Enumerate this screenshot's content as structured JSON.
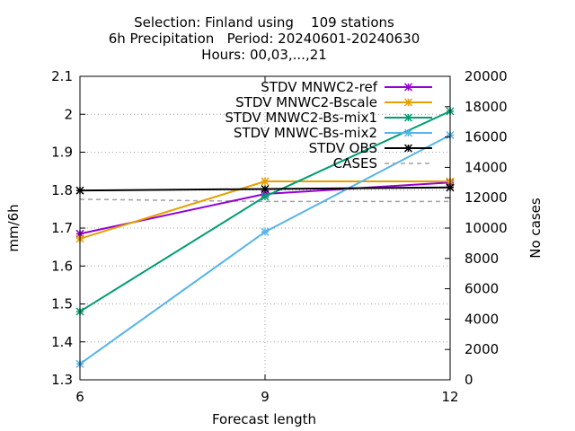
{
  "chart_data": {
    "type": "line",
    "title_lines": [
      "Selection: Finland using    109 stations",
      "6h Precipitation   Period: 20240601-20240630",
      "Hours: 00,03,...,21"
    ],
    "xlabel": "Forecast length",
    "ylabel": "mm/6h",
    "y2label": "No cases",
    "x": [
      6,
      9,
      12
    ],
    "xticks": [
      "6",
      "9",
      "12"
    ],
    "xlim": [
      6,
      12
    ],
    "ylim": [
      1.3,
      2.1
    ],
    "yticks": [
      "1.3",
      "1.4",
      "1.5",
      "1.6",
      "1.7",
      "1.8",
      "1.9",
      "2",
      "2.1"
    ],
    "y2lim": [
      0,
      20000
    ],
    "y2ticks": [
      "0",
      "2000",
      "4000",
      "6000",
      "8000",
      "10000",
      "12000",
      "14000",
      "16000",
      "18000",
      "20000"
    ],
    "grid": true,
    "legend_position": "top-right",
    "series": [
      {
        "name": "STDV MNWC2-ref",
        "color": "#9400d3",
        "values": [
          1.685,
          1.79,
          1.82
        ],
        "axis": "y"
      },
      {
        "name": "STDV MNWC2-Bscale",
        "color": "#e69f00",
        "values": [
          1.672,
          1.823,
          1.823
        ],
        "axis": "y"
      },
      {
        "name": "STDV MNWC2-Bs-mix1",
        "color": "#009e73",
        "values": [
          1.48,
          1.783,
          2.008
        ],
        "axis": "y"
      },
      {
        "name": "STDV MNWC-Bs-mix2",
        "color": "#56b4e9",
        "values": [
          1.342,
          1.69,
          1.945
        ],
        "axis": "y"
      },
      {
        "name": "STDV OBS",
        "color": "#000000",
        "values": [
          1.799,
          1.803,
          1.807
        ],
        "axis": "y"
      },
      {
        "name": "CASES",
        "color": "#a0a0a0",
        "values": [
          11900,
          11750,
          11750
        ],
        "axis": "y2",
        "dashed": true,
        "marker": false
      }
    ]
  }
}
